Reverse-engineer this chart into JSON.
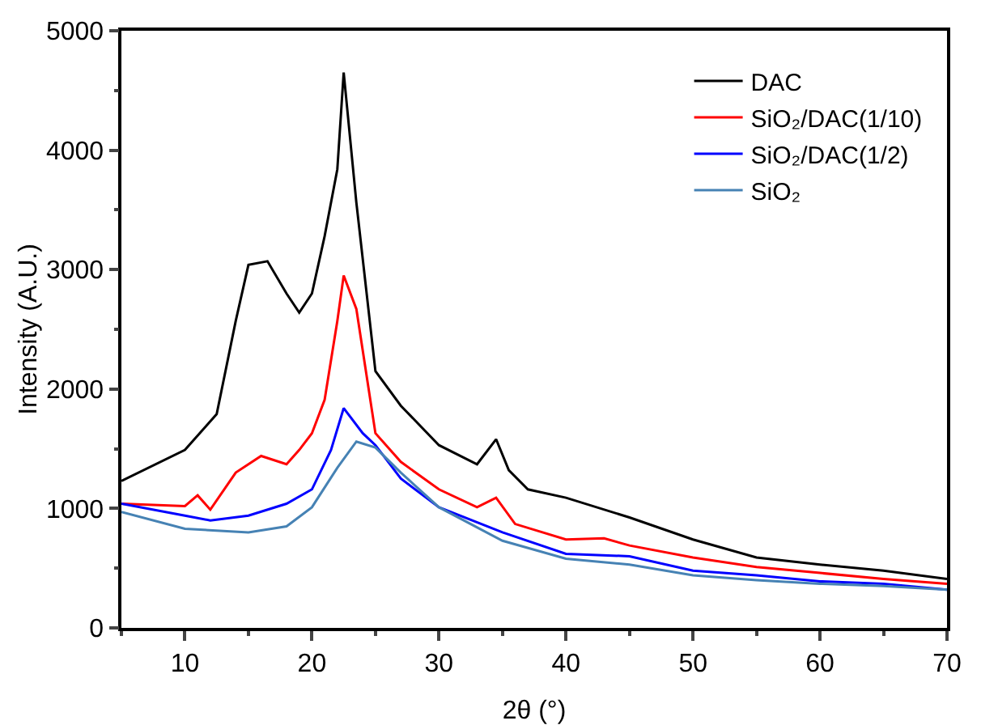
{
  "chart_data": {
    "type": "line",
    "xlabel": "2θ (°)",
    "ylabel": "Intensity (A.U.)",
    "xlim": [
      5,
      70
    ],
    "xticks": [
      10,
      20,
      30,
      40,
      50,
      60,
      70
    ],
    "ylim": [
      0,
      5000
    ],
    "yticks": [
      0,
      1000,
      2000,
      3000,
      4000,
      5000
    ],
    "grid": false,
    "legend": "top right",
    "marker": "none",
    "line_style": "solid",
    "series": [
      {
        "name": "DAC",
        "color": "#000000",
        "x": [
          5,
          10,
          12.5,
          14,
          15,
          16.5,
          18,
          19,
          20,
          21,
          22,
          22.5,
          23.5,
          25,
          27,
          30,
          33,
          34.5,
          35.5,
          37,
          40,
          45,
          50,
          55,
          60,
          65,
          70
        ],
        "values": [
          1230,
          1490,
          1790,
          2570,
          3040,
          3070,
          2800,
          2640,
          2800,
          3280,
          3840,
          4650,
          3560,
          2150,
          1860,
          1530,
          1370,
          1580,
          1320,
          1160,
          1090,
          925,
          740,
          590,
          530,
          480,
          410
        ]
      },
      {
        "name": "SiO₂/DAC(1/10)",
        "color": "#ff0000",
        "x": [
          5,
          10,
          11,
          12,
          14,
          16,
          18,
          19,
          20,
          21,
          22,
          22.5,
          23.5,
          25,
          27,
          30,
          33,
          34.5,
          36,
          40,
          43,
          45,
          50,
          55,
          60,
          65,
          70
        ],
        "values": [
          1040,
          1020,
          1110,
          990,
          1300,
          1440,
          1370,
          1490,
          1630,
          1910,
          2570,
          2950,
          2670,
          1630,
          1390,
          1160,
          1010,
          1090,
          870,
          740,
          750,
          690,
          590,
          510,
          460,
          410,
          370
        ]
      },
      {
        "name": "SiO₂/DAC(1/2)",
        "color": "#0000ff",
        "x": [
          5,
          10,
          12,
          15,
          18,
          20,
          21.5,
          22.5,
          24,
          25,
          27,
          30,
          35,
          40,
          45,
          50,
          55,
          60,
          65,
          70
        ],
        "values": [
          1040,
          940,
          900,
          940,
          1040,
          1160,
          1490,
          1840,
          1630,
          1530,
          1250,
          1010,
          800,
          620,
          600,
          480,
          440,
          390,
          370,
          320
        ]
      },
      {
        "name": "SiO₂",
        "color": "#4682b4",
        "x": [
          5,
          10,
          15,
          18,
          20,
          22,
          23.5,
          25,
          27,
          30,
          35,
          40,
          45,
          50,
          55,
          60,
          65,
          70
        ],
        "values": [
          970,
          830,
          800,
          850,
          1010,
          1340,
          1560,
          1510,
          1300,
          1010,
          730,
          580,
          530,
          440,
          400,
          370,
          350,
          320
        ]
      }
    ]
  }
}
